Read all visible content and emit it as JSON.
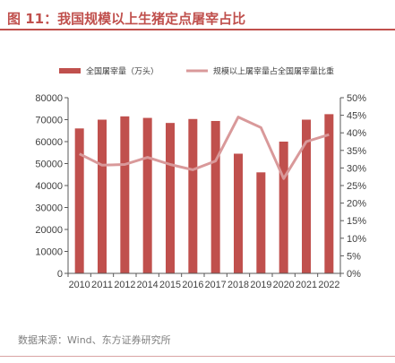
{
  "header": {
    "title": "图 11：我国规模以上生猪定点屠宰占比"
  },
  "footer": {
    "source": "数据来源：Wind、东方证券研究所"
  },
  "colors": {
    "bar": "#c0504d",
    "line": "#d9999a",
    "title": "#c0504d"
  },
  "chart_data": {
    "type": "bar",
    "categories": [
      "2010",
      "2011",
      "2012",
      "2014",
      "2015",
      "2016",
      "2017",
      "2018",
      "2019",
      "2020",
      "2021",
      "2022"
    ],
    "series": [
      {
        "name": "全国屠宰量（万头）",
        "type": "bar",
        "axis": "left",
        "values": [
          66000,
          70000,
          71500,
          70800,
          68500,
          70300,
          69400,
          54500,
          46000,
          60000,
          70000,
          72500
        ]
      },
      {
        "name": "规模以上屠宰量占全国屠宰量比重",
        "type": "line",
        "axis": "right",
        "values": [
          34.0,
          30.8,
          31.0,
          33.0,
          31.0,
          29.5,
          32.0,
          44.5,
          41.5,
          27.0,
          37.5,
          39.5
        ]
      }
    ],
    "ylim_left": [
      0,
      80000
    ],
    "yticks_left": [
      "0",
      "10000",
      "20000",
      "30000",
      "40000",
      "50000",
      "60000",
      "70000",
      "80000"
    ],
    "ylim_right": [
      0,
      50
    ],
    "yticks_right": [
      "0%",
      "5%",
      "10%",
      "15%",
      "20%",
      "25%",
      "30%",
      "35%",
      "40%",
      "45%",
      "50%"
    ],
    "legend": "top",
    "grid": false
  }
}
